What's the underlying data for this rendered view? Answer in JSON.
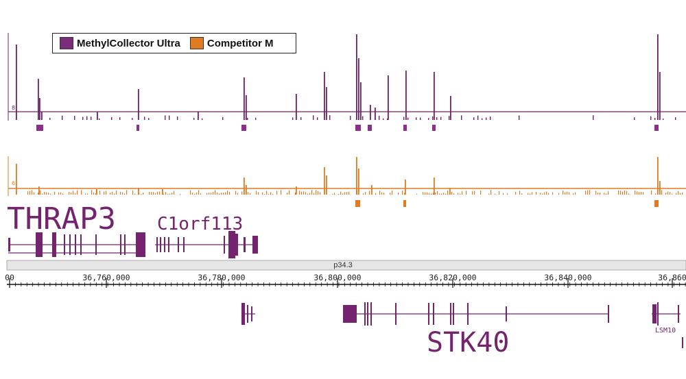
{
  "legend": {
    "items": [
      {
        "label": "MethylCollector Ultra",
        "color": "#7b2d7b"
      },
      {
        "label": "Competitor M",
        "color": "#e07b23"
      }
    ]
  },
  "colors": {
    "purple": "#6e2068",
    "orange": "#e07b23",
    "gene": "#74246f"
  },
  "tracks": {
    "purple": {
      "scale_label": "8",
      "peaks": [
        [
          23,
          110
        ],
        [
          55,
          60
        ],
        [
          57,
          32
        ],
        [
          60,
          12
        ],
        [
          141,
          12
        ],
        [
          201,
          45
        ],
        [
          288,
          12
        ],
        [
          355,
          62
        ],
        [
          358,
          36
        ],
        [
          431,
          38
        ],
        [
          472,
          70
        ],
        [
          475,
          48
        ],
        [
          519,
          125
        ],
        [
          522,
          90
        ],
        [
          525,
          55
        ],
        [
          539,
          22
        ],
        [
          546,
          18
        ],
        [
          565,
          65
        ],
        [
          591,
          72
        ],
        [
          632,
          70
        ],
        [
          656,
          35
        ],
        [
          958,
          125
        ],
        [
          961,
          70
        ]
      ],
      "call_regions": [
        [
          53,
          63
        ],
        [
          199,
          203
        ],
        [
          352,
          359
        ],
        [
          518,
          526
        ],
        [
          536,
          542
        ],
        [
          588,
          593
        ],
        [
          630,
          635
        ],
        [
          954,
          960
        ]
      ]
    },
    "orange": {
      "scale_label": "6",
      "peaks": [
        [
          23,
          45
        ],
        [
          56,
          12
        ],
        [
          140,
          8
        ],
        [
          201,
          10
        ],
        [
          236,
          8
        ],
        [
          355,
          25
        ],
        [
          358,
          14
        ],
        [
          431,
          12
        ],
        [
          472,
          40
        ],
        [
          475,
          28
        ],
        [
          519,
          55
        ],
        [
          522,
          38
        ],
        [
          541,
          14
        ],
        [
          590,
          22
        ],
        [
          632,
          25
        ],
        [
          655,
          10
        ],
        [
          958,
          55
        ],
        [
          961,
          20
        ]
      ],
      "call_regions": [
        [
          518,
          525
        ],
        [
          588,
          592
        ],
        [
          954,
          960
        ]
      ]
    }
  },
  "genes": {
    "top": [
      {
        "name": "THRAP3"
      },
      {
        "name": "C1orf113"
      }
    ],
    "bottom": [
      {
        "name": "STK40"
      },
      {
        "name": "LSM10"
      }
    ]
  },
  "ideogram": {
    "band": "p34.3"
  },
  "axis": {
    "ticks": [
      "00",
      "36,760,000",
      "36,780,000",
      "36,800,000",
      "36,820,000",
      "36,840,000",
      "36,860"
    ]
  }
}
